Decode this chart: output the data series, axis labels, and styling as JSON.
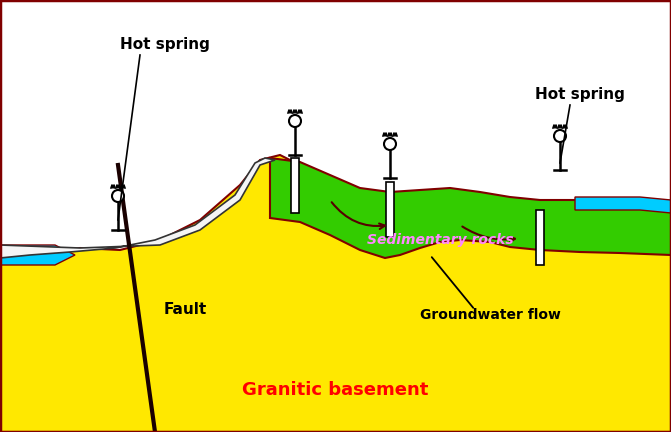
{
  "bg_color": "#ffffff",
  "granite_color": "#FFE800",
  "sediment_color": "#33CC00",
  "water_color": "#00CCFF",
  "fault_color": "#1a0000",
  "label_granitic": "Granitic basement",
  "label_granitic_color": "#FF0000",
  "label_sedimentary": "Sedimentary rocks",
  "label_sedimentary_color": "#FF88FF",
  "label_fault": "Fault",
  "label_gw_flow": "Groundwater flow",
  "label_hot_spring1": "Hot spring",
  "label_hot_spring2": "Hot spring",
  "border_color": "#800000"
}
